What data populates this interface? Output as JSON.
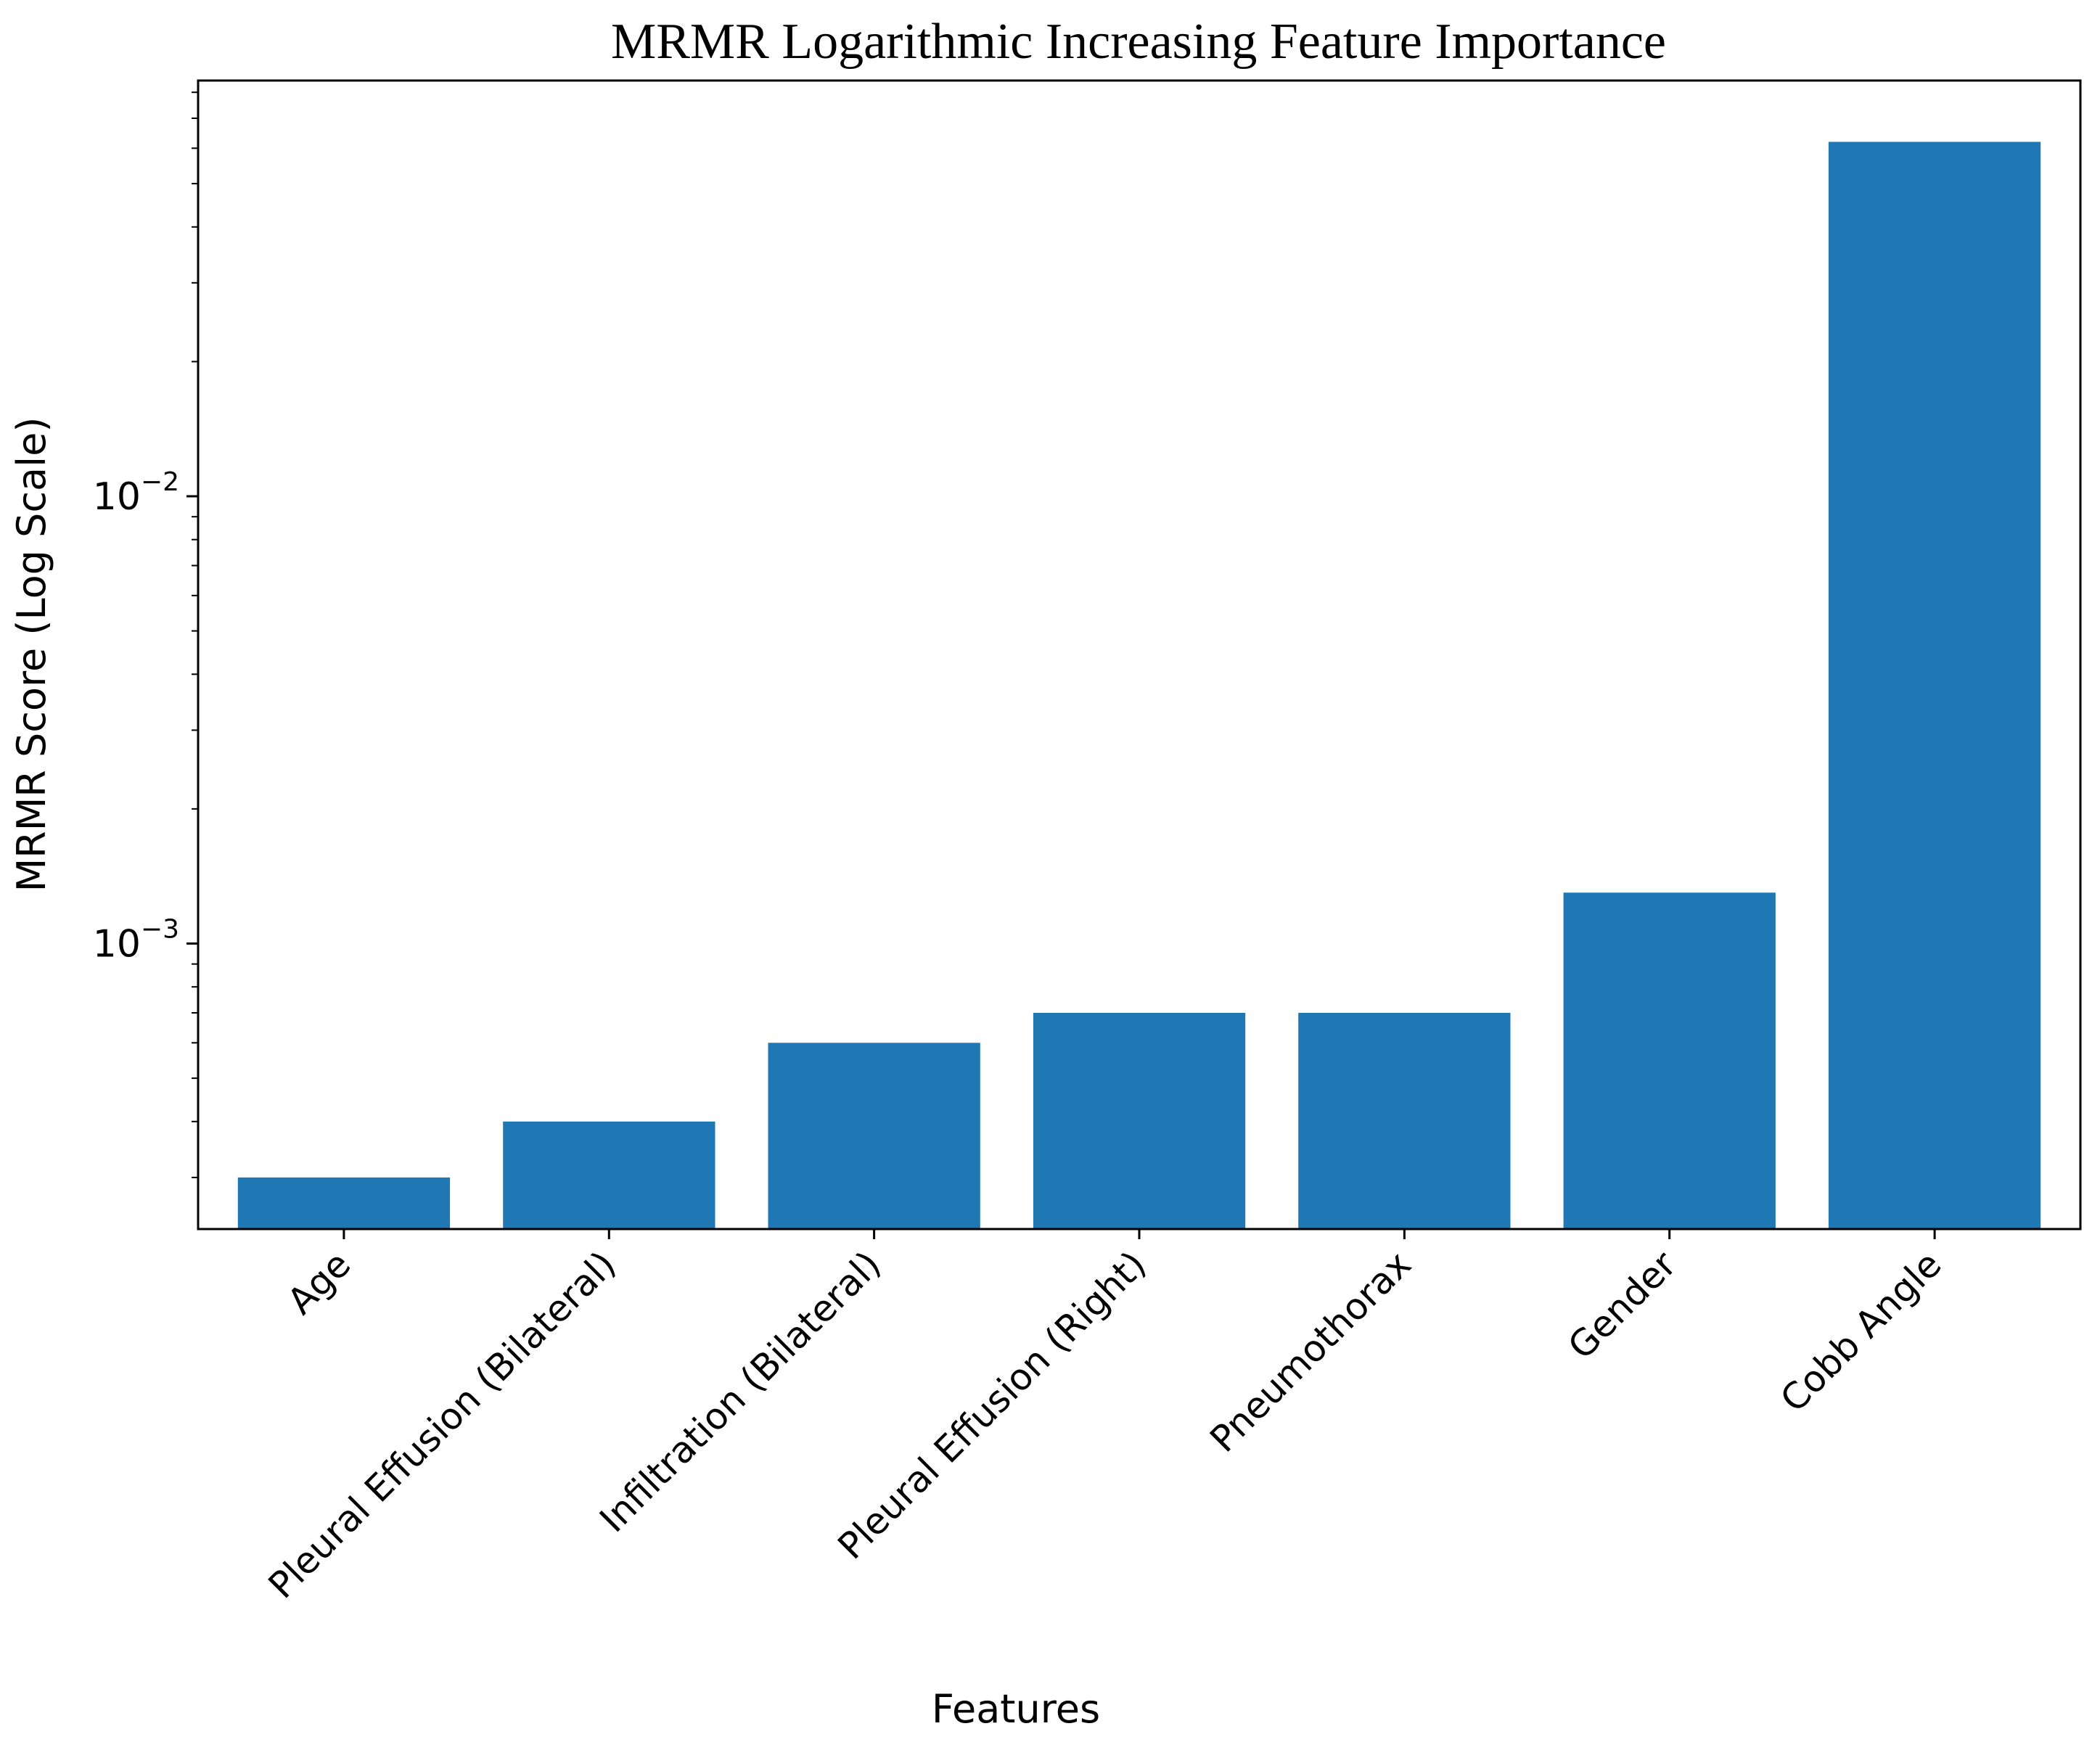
{
  "chart_data": {
    "type": "bar",
    "title": "MRMR Logarithmic Increasing Feature Importance",
    "xlabel": "Features",
    "ylabel": "MRMR Score (Log Scale)",
    "yscale": "log",
    "ylim": [
      0.00023,
      0.085
    ],
    "categories": [
      "Age",
      "Pleural Effusion (Bilateral)",
      "Infiltration (Bilateral)",
      "Pleural Effusion (Right)",
      "Pneumothorax",
      "Gender",
      "Cobb Angle"
    ],
    "values": [
      0.0003,
      0.0004,
      0.0006,
      0.0007,
      0.0007,
      0.0013,
      0.062
    ],
    "yticks": [
      {
        "value": 0.001,
        "base": "10",
        "exponent": "−3"
      },
      {
        "value": 0.01,
        "base": "10",
        "exponent": "−2"
      }
    ],
    "bar_color": "#1f77b4",
    "grid": false,
    "legend": false
  }
}
